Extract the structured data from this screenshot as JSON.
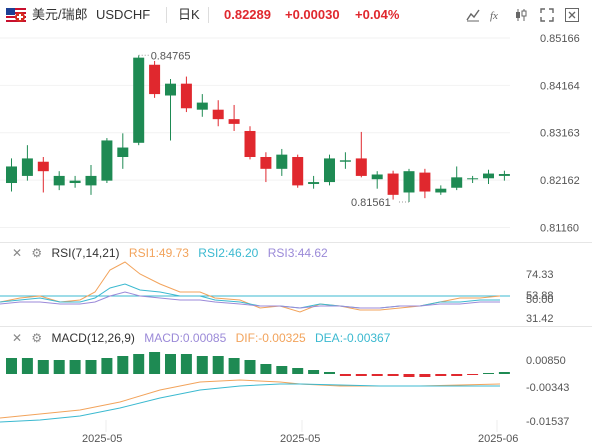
{
  "header": {
    "symbol_cn": "美元/瑞郎",
    "symbol": "USDCHF",
    "timeframe": "日K",
    "price": "0.82289",
    "change": "+0.00030",
    "change_pct": "+0.04%",
    "up_color": "#e0282e",
    "down_color": "#1e8a53"
  },
  "price_axis": [
    "0.85166",
    "0.84164",
    "0.83163",
    "0.82162",
    "0.81160"
  ],
  "annotations": {
    "high": "0.84765",
    "low": "0.81561"
  },
  "rsi": {
    "label": "RSI(7,14,21)",
    "rsi1": "RSI1:49.73",
    "rsi2": "RSI2:46.20",
    "rsi3": "RSI3:44.62",
    "axis": [
      "74.33",
      "53.88",
      "50.00",
      "31.42"
    ],
    "colors": {
      "rsi1": "#f2a35b",
      "rsi2": "#3bb9d0",
      "rsi3": "#9b8ad8"
    }
  },
  "macd": {
    "label": "MACD(12,26,9)",
    "macd": "MACD:0.00085",
    "dif": "DIF:-0.00325",
    "dea": "DEA:-0.00367",
    "axis": [
      "0.00850",
      "-0.00343",
      "-0.01537"
    ],
    "colors": {
      "macd": "#9b8ad8",
      "dif": "#f2a35b",
      "dea": "#3bb9d0"
    }
  },
  "time_axis": [
    "2025-05",
    "2025-05",
    "2025-06"
  ],
  "chart_data": {
    "type": "candlestick",
    "y_range": [
      0.8098,
      0.8525
    ],
    "candles": [
      {
        "o": 0.821,
        "h": 0.8262,
        "l": 0.8192,
        "c": 0.8245
      },
      {
        "o": 0.8225,
        "h": 0.829,
        "l": 0.8215,
        "c": 0.8262
      },
      {
        "o": 0.8255,
        "h": 0.8265,
        "l": 0.819,
        "c": 0.8235
      },
      {
        "o": 0.8205,
        "h": 0.8235,
        "l": 0.8195,
        "c": 0.8225
      },
      {
        "o": 0.821,
        "h": 0.8225,
        "l": 0.82,
        "c": 0.8215
      },
      {
        "o": 0.8205,
        "h": 0.8248,
        "l": 0.8185,
        "c": 0.8225
      },
      {
        "o": 0.8215,
        "h": 0.8305,
        "l": 0.821,
        "c": 0.83
      },
      {
        "o": 0.8265,
        "h": 0.8315,
        "l": 0.824,
        "c": 0.8285
      },
      {
        "o": 0.8295,
        "h": 0.848,
        "l": 0.829,
        "c": 0.8475
      },
      {
        "o": 0.846,
        "h": 0.8468,
        "l": 0.839,
        "c": 0.8398
      },
      {
        "o": 0.8395,
        "h": 0.843,
        "l": 0.83,
        "c": 0.842
      },
      {
        "o": 0.842,
        "h": 0.8435,
        "l": 0.836,
        "c": 0.8368
      },
      {
        "o": 0.8365,
        "h": 0.8398,
        "l": 0.835,
        "c": 0.838
      },
      {
        "o": 0.8365,
        "h": 0.8385,
        "l": 0.833,
        "c": 0.8345
      },
      {
        "o": 0.8345,
        "h": 0.8375,
        "l": 0.832,
        "c": 0.8335
      },
      {
        "o": 0.832,
        "h": 0.833,
        "l": 0.826,
        "c": 0.8265
      },
      {
        "o": 0.8265,
        "h": 0.8275,
        "l": 0.8212,
        "c": 0.824
      },
      {
        "o": 0.824,
        "h": 0.8282,
        "l": 0.8225,
        "c": 0.827
      },
      {
        "o": 0.8265,
        "h": 0.827,
        "l": 0.82,
        "c": 0.8205
      },
      {
        "o": 0.8208,
        "h": 0.8225,
        "l": 0.8198,
        "c": 0.8212
      },
      {
        "o": 0.8212,
        "h": 0.827,
        "l": 0.8205,
        "c": 0.8262
      },
      {
        "o": 0.8255,
        "h": 0.8275,
        "l": 0.824,
        "c": 0.8258
      },
      {
        "o": 0.8262,
        "h": 0.8318,
        "l": 0.8222,
        "c": 0.8225
      },
      {
        "o": 0.8218,
        "h": 0.8235,
        "l": 0.8198,
        "c": 0.8228
      },
      {
        "o": 0.823,
        "h": 0.8236,
        "l": 0.8175,
        "c": 0.8185
      },
      {
        "o": 0.819,
        "h": 0.824,
        "l": 0.817,
        "c": 0.8235
      },
      {
        "o": 0.8232,
        "h": 0.824,
        "l": 0.8178,
        "c": 0.8192
      },
      {
        "o": 0.819,
        "h": 0.8205,
        "l": 0.8185,
        "c": 0.8198
      },
      {
        "o": 0.82,
        "h": 0.8245,
        "l": 0.8195,
        "c": 0.8222
      },
      {
        "o": 0.8218,
        "h": 0.8225,
        "l": 0.821,
        "c": 0.822
      },
      {
        "o": 0.822,
        "h": 0.8238,
        "l": 0.8208,
        "c": 0.823
      },
      {
        "o": 0.8225,
        "h": 0.8236,
        "l": 0.8215,
        "c": 0.8229
      }
    ]
  }
}
